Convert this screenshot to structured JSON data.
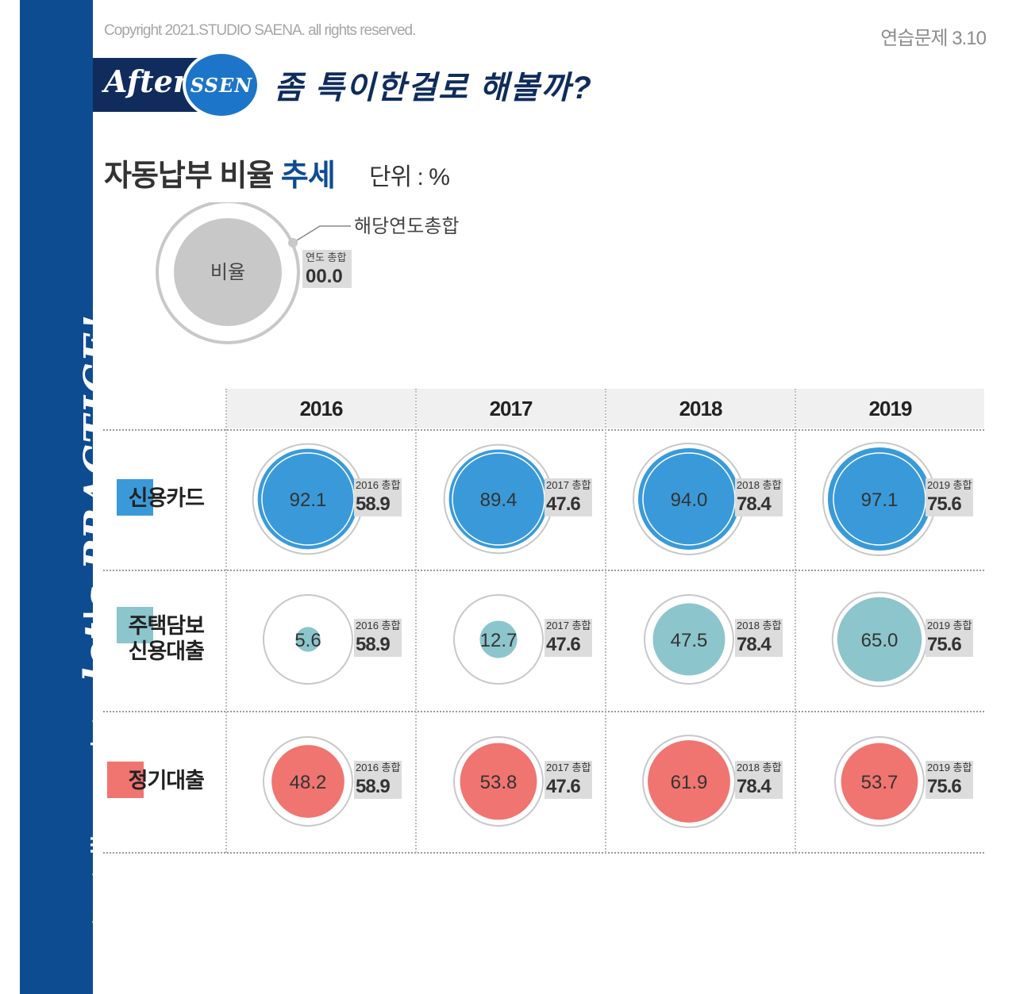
{
  "header": {
    "copyright": "Copyright 2021.STUDIO SAENA. all rights reserved.",
    "exercise": "연습문제 3.10",
    "after_badge": "After",
    "ssen_badge": "SSEN",
    "headline": "좀 특이한걸로 해볼까?"
  },
  "sidebar": {
    "text_main": "storytelling",
    "text_with": "with",
    "text_data": "data",
    "text_script": "let's PRACTICE!"
  },
  "title": {
    "part1": "자동납부 비율 ",
    "part2": "추세",
    "unit": "단위 : %"
  },
  "legend": {
    "circle_label": "비율",
    "callout": "해당연도총합",
    "tag": "연도 총합",
    "total": "00.0"
  },
  "colors": {
    "sidebar": "#0e4c92",
    "credit_card": "#3a9ad9",
    "mortgage": "#8cc5cc",
    "term_loan": "#f07470",
    "legend_gray": "#c8c8c8",
    "ring_gray": "#c8c8c8"
  },
  "chart_data": {
    "type": "bubble-matrix",
    "title": "자동납부 비율 추세",
    "unit": "%",
    "years": [
      "2016",
      "2017",
      "2018",
      "2019"
    ],
    "year_totals": [
      58.9,
      47.6,
      78.4,
      75.6
    ],
    "total_tags": [
      "2016 총합",
      "2017 총합",
      "2018 총합",
      "2019 총합"
    ],
    "series": [
      {
        "name": "신용카드",
        "lines": [
          "신용카드"
        ],
        "color": "#3a9ad9",
        "values": [
          92.1,
          89.4,
          94.0,
          97.1
        ]
      },
      {
        "name": "주택담보 신용대출",
        "lines": [
          "주택담보",
          "신용대출"
        ],
        "color": "#8cc5cc",
        "values": [
          5.6,
          12.7,
          47.5,
          65.0
        ]
      },
      {
        "name": "정기대출",
        "lines": [
          "정기대출"
        ],
        "color": "#f07470",
        "values": [
          48.2,
          53.8,
          61.9,
          53.7
        ]
      }
    ]
  }
}
